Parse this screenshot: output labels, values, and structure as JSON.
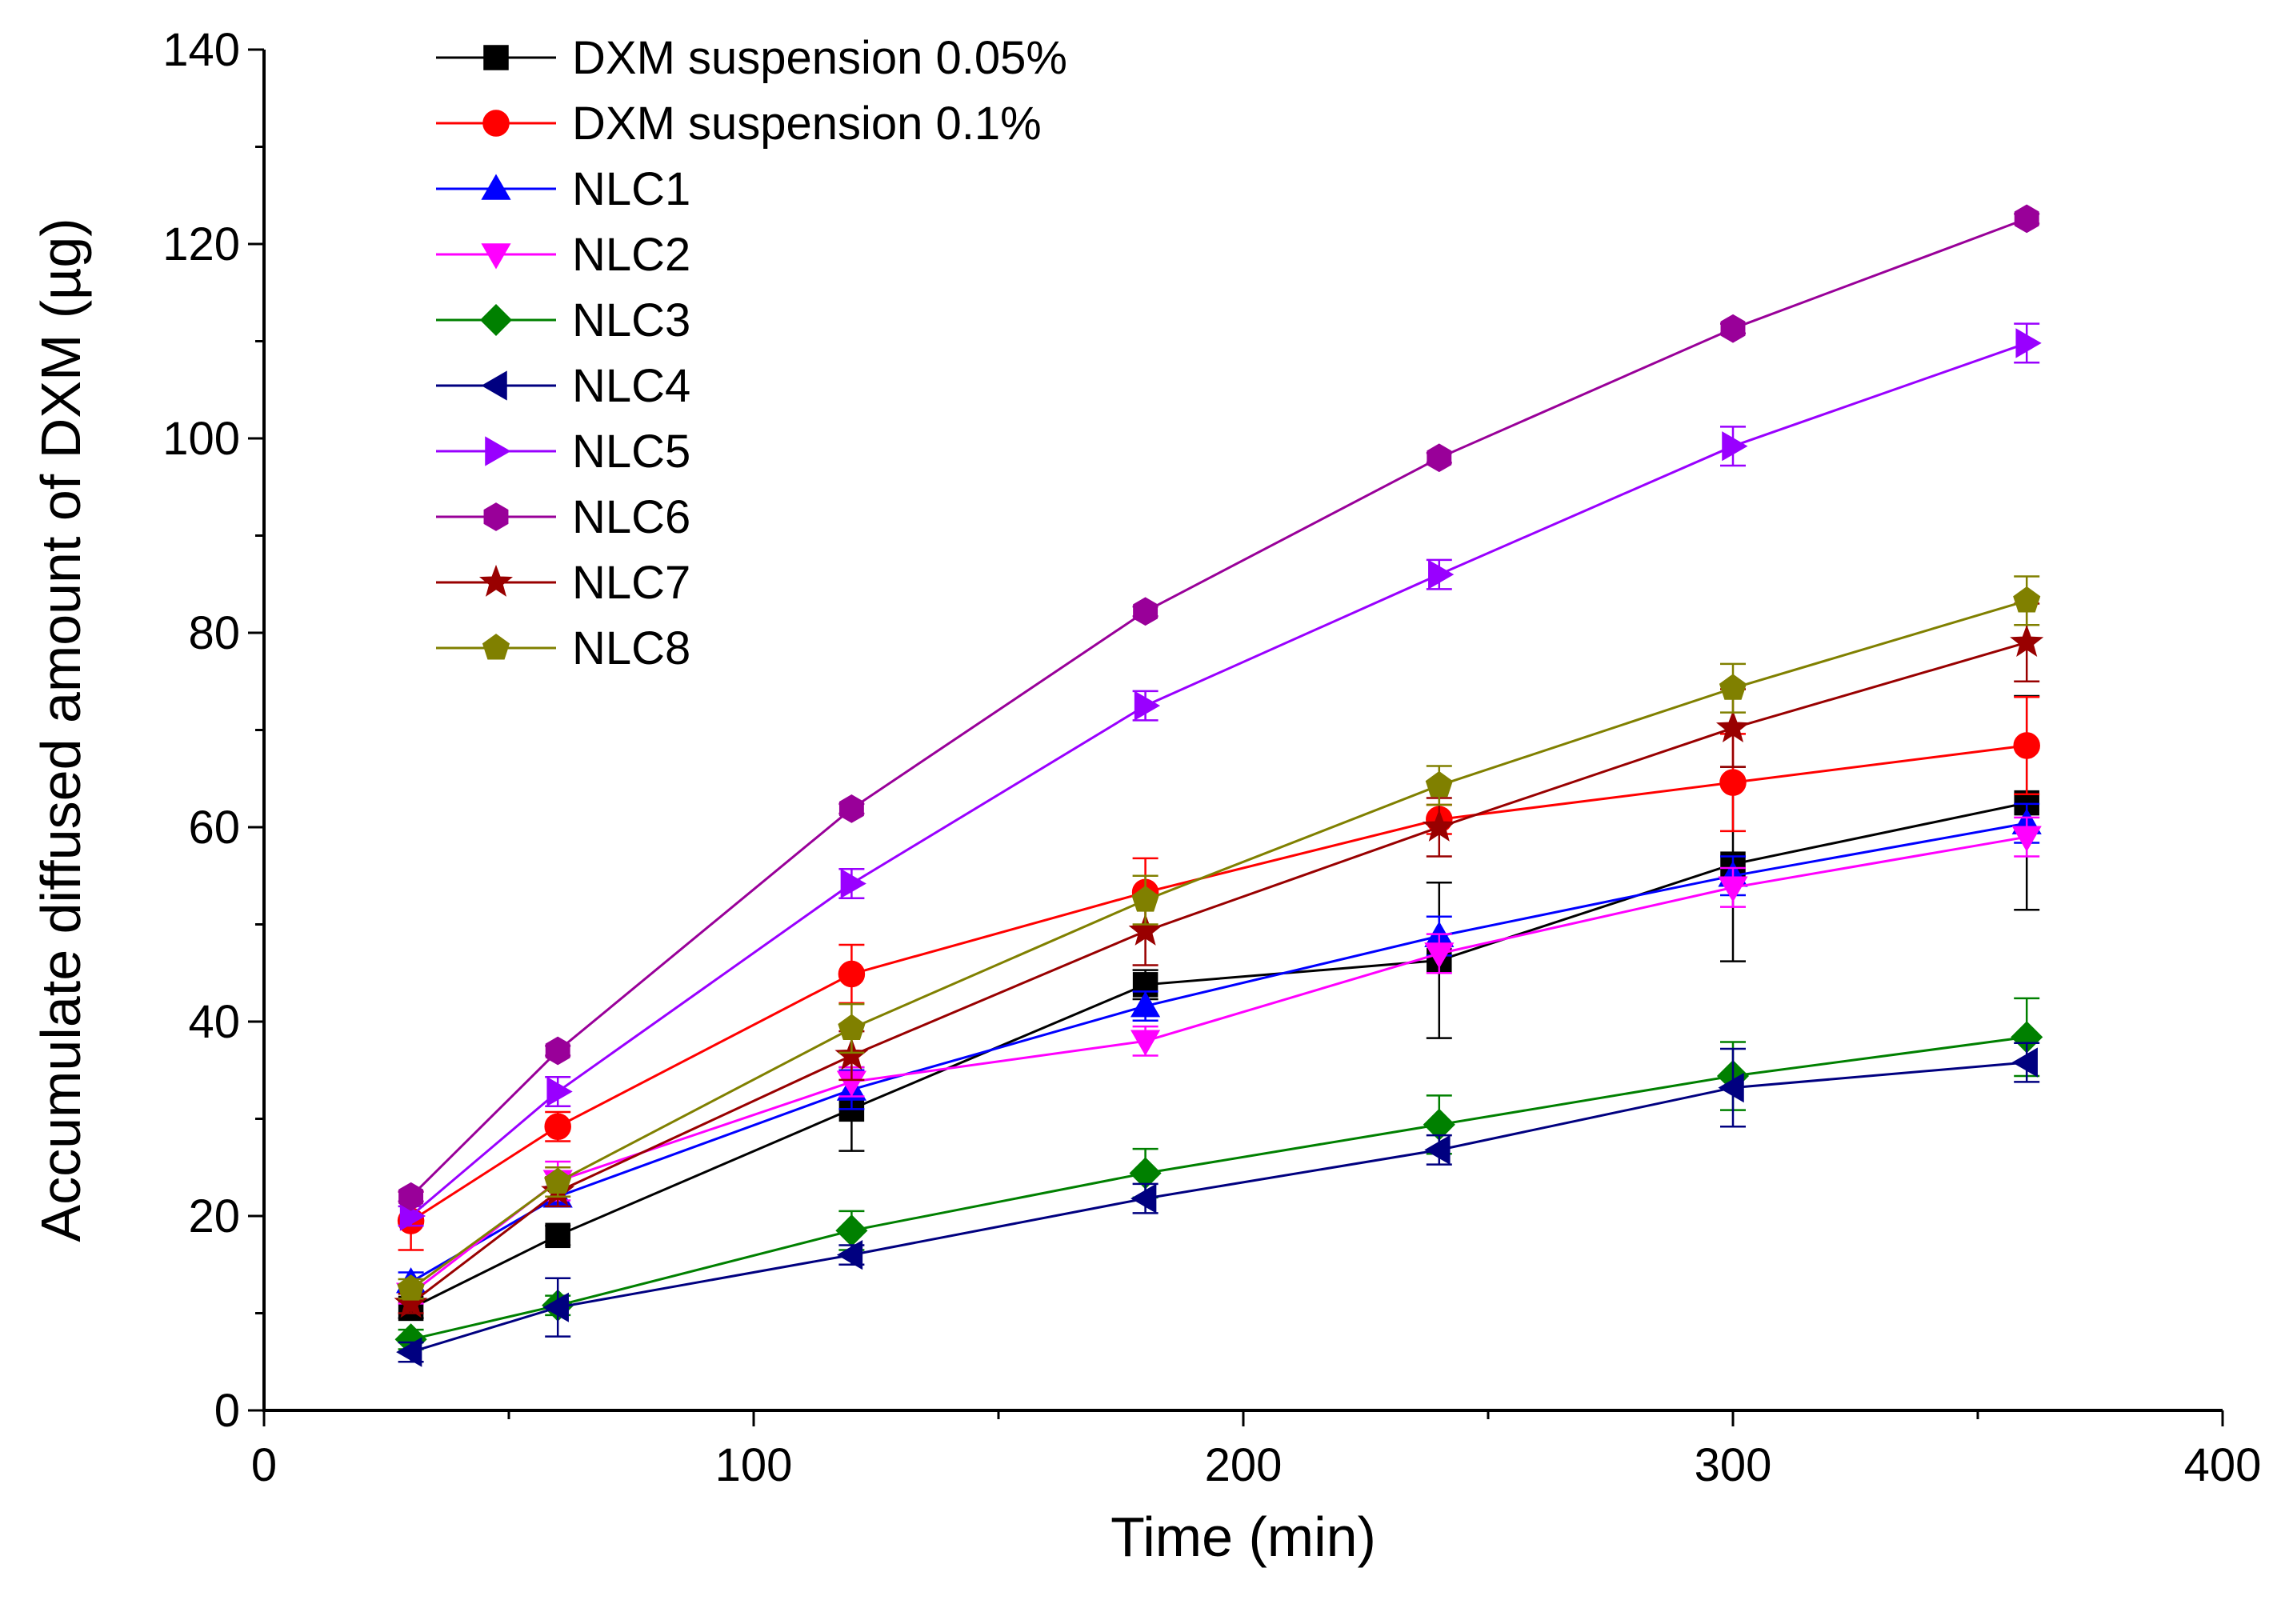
{
  "chart_data": {
    "type": "line",
    "xlabel": "Time (min)",
    "ylabel": "Accumulate diffused amount of DXM (µg)",
    "xlim": [
      0,
      400
    ],
    "ylim": [
      0,
      140
    ],
    "xticks": [
      0,
      100,
      200,
      300,
      400
    ],
    "yticks": [
      0,
      20,
      40,
      60,
      80,
      100,
      120,
      140
    ],
    "x_minor_step": 50,
    "y_minor_step": 10,
    "grid": false,
    "legend_position": "top-left",
    "x": [
      30,
      60,
      120,
      180,
      240,
      300,
      360
    ],
    "series": [
      {
        "name": "DXM suspension 0.05%",
        "color": "#000000",
        "marker": "square",
        "values": [
          10.5,
          18.0,
          31.0,
          43.8,
          46.3,
          56.2,
          62.5
        ],
        "errors": [
          1.0,
          1.0,
          4.3,
          1.5,
          8.0,
          10.0,
          11.0
        ]
      },
      {
        "name": "DXM suspension 0.1%",
        "color": "#ff0000",
        "marker": "circle",
        "values": [
          19.5,
          29.2,
          44.9,
          53.3,
          60.8,
          64.6,
          68.4
        ],
        "errors": [
          3.0,
          1.5,
          3.0,
          3.5,
          1.5,
          5.0,
          5.0
        ]
      },
      {
        "name": "NLC1",
        "color": "#0000ff",
        "marker": "triangle-up",
        "values": [
          13.2,
          22.0,
          33.0,
          41.6,
          48.8,
          55.0,
          60.4
        ],
        "errors": [
          1.0,
          1.0,
          2.0,
          1.5,
          2.0,
          2.0,
          2.0
        ]
      },
      {
        "name": "NLC2",
        "color": "#ff00ff",
        "marker": "triangle-down",
        "values": [
          12.0,
          23.6,
          33.8,
          38.0,
          47.0,
          53.8,
          59.0
        ],
        "errors": [
          1.0,
          2.0,
          1.5,
          1.5,
          2.0,
          2.0,
          2.0
        ]
      },
      {
        "name": "NLC3",
        "color": "#008000",
        "marker": "diamond",
        "values": [
          7.3,
          10.8,
          18.5,
          24.4,
          29.4,
          34.4,
          38.4
        ],
        "errors": [
          1.0,
          1.0,
          2.0,
          2.5,
          3.0,
          3.5,
          4.0
        ]
      },
      {
        "name": "NLC4",
        "color": "#000080",
        "marker": "triangle-left",
        "values": [
          6.0,
          10.6,
          16.0,
          21.8,
          26.8,
          33.2,
          35.8
        ],
        "errors": [
          1.0,
          3.0,
          1.0,
          1.5,
          1.5,
          4.0,
          2.0
        ]
      },
      {
        "name": "NLC5",
        "color": "#9900ff",
        "marker": "triangle-right",
        "values": [
          20.0,
          32.8,
          54.2,
          72.5,
          86.0,
          99.2,
          109.8
        ],
        "errors": [
          1.0,
          1.5,
          1.5,
          1.5,
          1.5,
          2.0,
          2.0
        ]
      },
      {
        "name": "NLC6",
        "color": "#990099",
        "marker": "hexagon",
        "values": [
          22.0,
          37.0,
          61.9,
          82.2,
          98.0,
          111.3,
          122.6
        ],
        "errors": [
          0.5,
          0.5,
          0.5,
          0.5,
          0.5,
          0.5,
          0.5
        ]
      },
      {
        "name": "NLC7",
        "color": "#990000",
        "marker": "star",
        "values": [
          11.0,
          22.5,
          36.5,
          49.3,
          60.0,
          70.2,
          79.0
        ],
        "errors": [
          1.0,
          1.5,
          2.5,
          3.5,
          3.0,
          4.0,
          4.0
        ]
      },
      {
        "name": "NLC8",
        "color": "#808000",
        "marker": "pentagon",
        "values": [
          12.5,
          23.5,
          39.3,
          52.5,
          64.3,
          74.3,
          83.3
        ],
        "errors": [
          1.0,
          1.5,
          2.5,
          2.5,
          2.0,
          2.5,
          2.5
        ]
      }
    ]
  }
}
